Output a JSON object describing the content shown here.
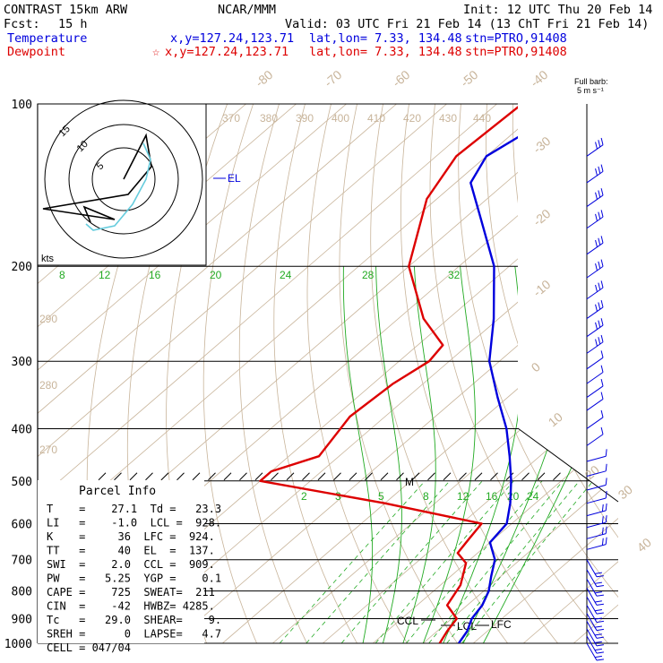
{
  "header": {
    "model": "CONTRAST 15km ARW",
    "org": "NCAR/MMM",
    "init": "Init: 12 UTC Thu 20 Feb 14",
    "fcst_label": "Fcst:",
    "fcst_value": "15 h",
    "valid": "Valid: 03 UTC Fri 21 Feb 14 (13 ChT Fri 21 Feb 14)"
  },
  "legend": {
    "temperature": {
      "label": "Temperature",
      "xy": "x,y=127.24,123.71",
      "latlon": "lat,lon=  7.33, 134.48",
      "stn": "stn=PTRO,91408",
      "color": "#0000dd"
    },
    "dewpoint": {
      "label": "Dewpoint",
      "star": "☆",
      "xy": "x,y=127.24,123.71",
      "latlon": "lat,lon=  7.33, 134.48",
      "stn": "stn=PTRO,91408",
      "color": "#dd0000"
    }
  },
  "barb_title": [
    "Full barb:",
    "5 m s⁻¹"
  ],
  "hodograph": {
    "ring_labels": [
      "15",
      "10",
      "5"
    ],
    "units": "kts"
  },
  "parcel_info": {
    "title": "Parcel Info",
    "rows": [
      "T    =    27.1  Td =   23.3",
      "LI   =    -1.0  LCL =  928.",
      "K    =     36  LFC =  924.",
      "TT   =     40  EL  =  137.",
      "SWI  =    2.0  CCL =  909.",
      "PW   =   5.25  YGP =    0.1",
      "CAPE =    725  SWEAT=  211",
      "CIN  =    -42  HWBZ= 4285.",
      "Tc   =   29.0  SHEAR=    9.",
      "SREH =      0  LAPSE=   4.7",
      "CELL = 047/04"
    ]
  },
  "chart_data": {
    "type": "skew-t",
    "y_axis": {
      "label": "pressure",
      "ticks": [
        100,
        200,
        300,
        400,
        500,
        600,
        700,
        800,
        900,
        1000
      ]
    },
    "isotherm_labels": [
      "-80",
      "-70",
      "-60",
      "-50",
      "-40",
      "-30",
      "-20",
      "-10",
      "0",
      "10",
      "20",
      "30",
      "40"
    ],
    "theta_labels": [
      "370",
      "380",
      "390",
      "400",
      "410",
      "420",
      "430",
      "440"
    ],
    "theta_labels_left": [
      "290",
      "280",
      "270"
    ],
    "mixing_ratio_labels_top": [
      "8",
      "12",
      "16",
      "20",
      "24",
      "28",
      "32"
    ],
    "mixing_ratio_labels_low": [
      "2",
      "3",
      "5",
      "8",
      "12",
      "16",
      "20",
      "24"
    ],
    "annotations": [
      "EL",
      "M",
      "CCL",
      "LCL",
      "LFC"
    ],
    "series": [
      {
        "name": "Temperature",
        "color": "#0000dd",
        "points": [
          [
            100,
            -72
          ],
          [
            110,
            -77
          ],
          [
            125,
            -80
          ],
          [
            140,
            -77
          ],
          [
            160,
            -68
          ],
          [
            200,
            -53
          ],
          [
            250,
            -41
          ],
          [
            300,
            -32
          ],
          [
            350,
            -22
          ],
          [
            400,
            -13
          ],
          [
            450,
            -6
          ],
          [
            500,
            0
          ],
          [
            550,
            5
          ],
          [
            600,
            9
          ],
          [
            650,
            10
          ],
          [
            700,
            15
          ],
          [
            750,
            18
          ],
          [
            800,
            21
          ],
          [
            850,
            23
          ],
          [
            900,
            24
          ],
          [
            950,
            26
          ],
          [
            1000,
            27.1
          ]
        ]
      },
      {
        "name": "Dewpoint",
        "color": "#dd0000",
        "points": [
          [
            100,
            -85
          ],
          [
            125,
            -86
          ],
          [
            150,
            -82
          ],
          [
            200,
            -70
          ],
          [
            250,
            -55
          ],
          [
            280,
            -45
          ],
          [
            300,
            -44
          ],
          [
            330,
            -46
          ],
          [
            380,
            -47
          ],
          [
            450,
            -44
          ],
          [
            480,
            -50
          ],
          [
            500,
            -50
          ],
          [
            550,
            -20
          ],
          [
            600,
            4
          ],
          [
            640,
            5
          ],
          [
            680,
            6
          ],
          [
            710,
            10
          ],
          [
            780,
            14
          ],
          [
            850,
            16
          ],
          [
            900,
            21
          ],
          [
            950,
            22
          ],
          [
            1000,
            23.3
          ]
        ]
      }
    ]
  }
}
